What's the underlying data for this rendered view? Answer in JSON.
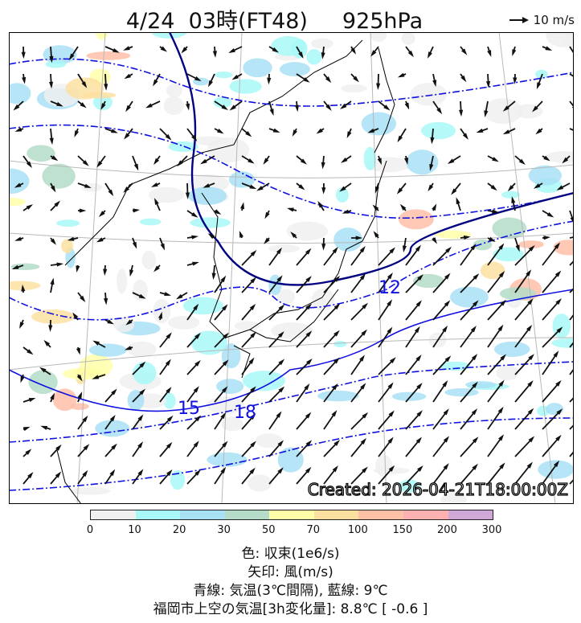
{
  "title": {
    "datetime": "4/24  03時(FT48)",
    "level": "925hPa"
  },
  "reference_arrow": {
    "icon": "arrow-right-icon",
    "label": "10 m/s"
  },
  "map": {
    "created": "Created: 2026-04-21T18:00:00Z",
    "contour_labels": [
      "15",
      "18",
      "12"
    ],
    "colors": {
      "temp_contour": "#1010e0",
      "nine_deg_contour": "#000080",
      "coast": "#000000",
      "grid": "#b0b0b0"
    }
  },
  "colorbar": {
    "ticks": [
      "0",
      "10",
      "20",
      "30",
      "50",
      "70",
      "100",
      "150",
      "200",
      "300"
    ],
    "colors": [
      "#f0f0f0",
      "#a8f8f8",
      "#a8e0f4",
      "#b4dcc8",
      "#ffffa8",
      "#fce0a0",
      "#ffc0a8",
      "#ffb0b0",
      "#d0a8d8"
    ]
  },
  "legend": {
    "line1": "色: 収束(1e6/s)",
    "line2": "矢印: 風(m/s)",
    "line3": "青線: 気温(3℃間隔), 藍線: 9℃",
    "line4": "福岡市上空の気温[3h変化量]: 8.8℃ [ -0.6 ]"
  }
}
